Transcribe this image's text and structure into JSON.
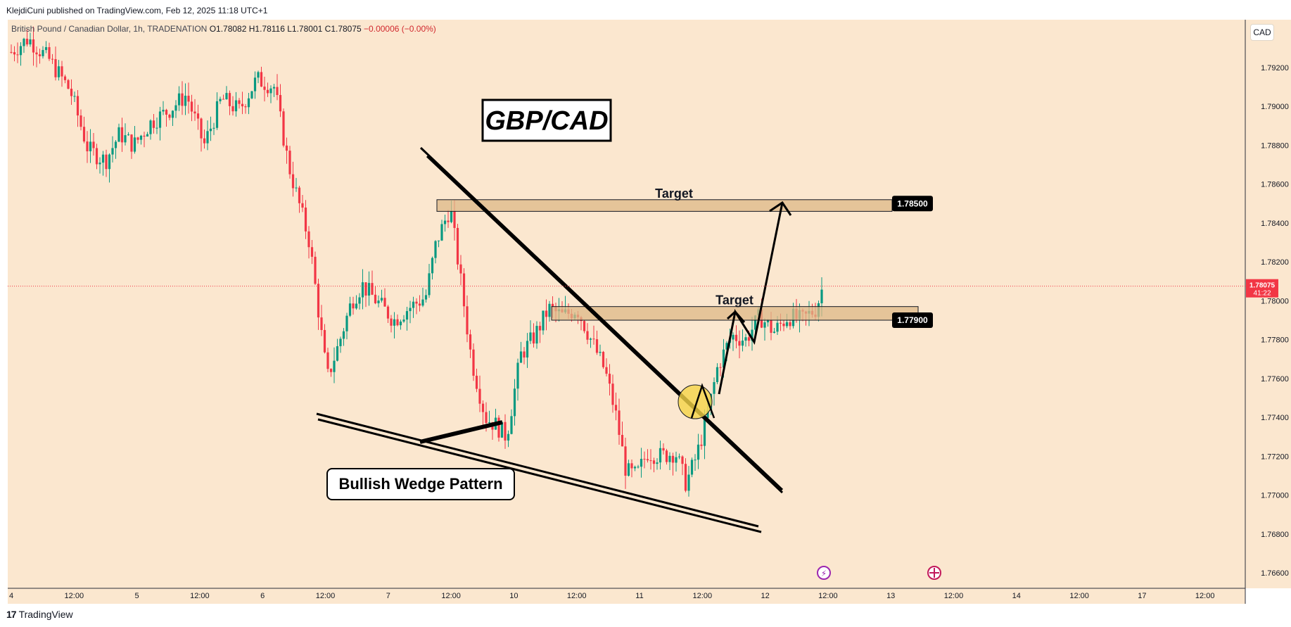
{
  "header": {
    "published_by": "KlejdiCuni published on TradingView.com, Feb 12, 2025 11:18 UTC+1"
  },
  "legend": {
    "symbol": "British Pound / Canadian Dollar, 1h, TRADENATION",
    "open": "O1.78082",
    "high": "H1.78116",
    "low": "L1.78001",
    "close": "C1.78075",
    "change": "−0.00006 (−0.00%)"
  },
  "currency_button": "CAD",
  "footer": {
    "brand": "TradingView"
  },
  "colors": {
    "background": "#fbe7cf",
    "bull": "#089981",
    "bear": "#f23645",
    "zone_fill": "#deb887",
    "price_tag": "#f23645"
  },
  "chart_data": {
    "type": "candlestick",
    "title": "GBP/CAD",
    "y_axis": {
      "range": [
        1.765,
        1.7935
      ],
      "ticks": [
        "1.79200",
        "1.79000",
        "1.78800",
        "1.78600",
        "1.78400",
        "1.78200",
        "1.78000",
        "1.77800",
        "1.77600",
        "1.77400",
        "1.77200",
        "1.77000",
        "1.76800",
        "1.76600"
      ]
    },
    "x_axis": {
      "ticks": [
        "4",
        "12:00",
        "5",
        "12:00",
        "6",
        "12:00",
        "7",
        "12:00",
        "10",
        "12:00",
        "11",
        "12:00",
        "12",
        "12:00",
        "13",
        "12:00",
        "14",
        "12:00",
        "17",
        "12:00"
      ]
    },
    "current_price": {
      "value": "1.78075",
      "countdown": "41:22"
    },
    "zones": [
      {
        "label": "Target",
        "price": "1.78500",
        "low": 1.7846,
        "high": 1.7852
      },
      {
        "label": "Target",
        "price": "1.77900",
        "low": 1.779,
        "high": 1.7797
      }
    ],
    "annotations": {
      "pattern_label": "Bullish Wedge Pattern"
    },
    "event_markers": [
      "lightning-icon",
      "uk-flag-icon"
    ]
  }
}
